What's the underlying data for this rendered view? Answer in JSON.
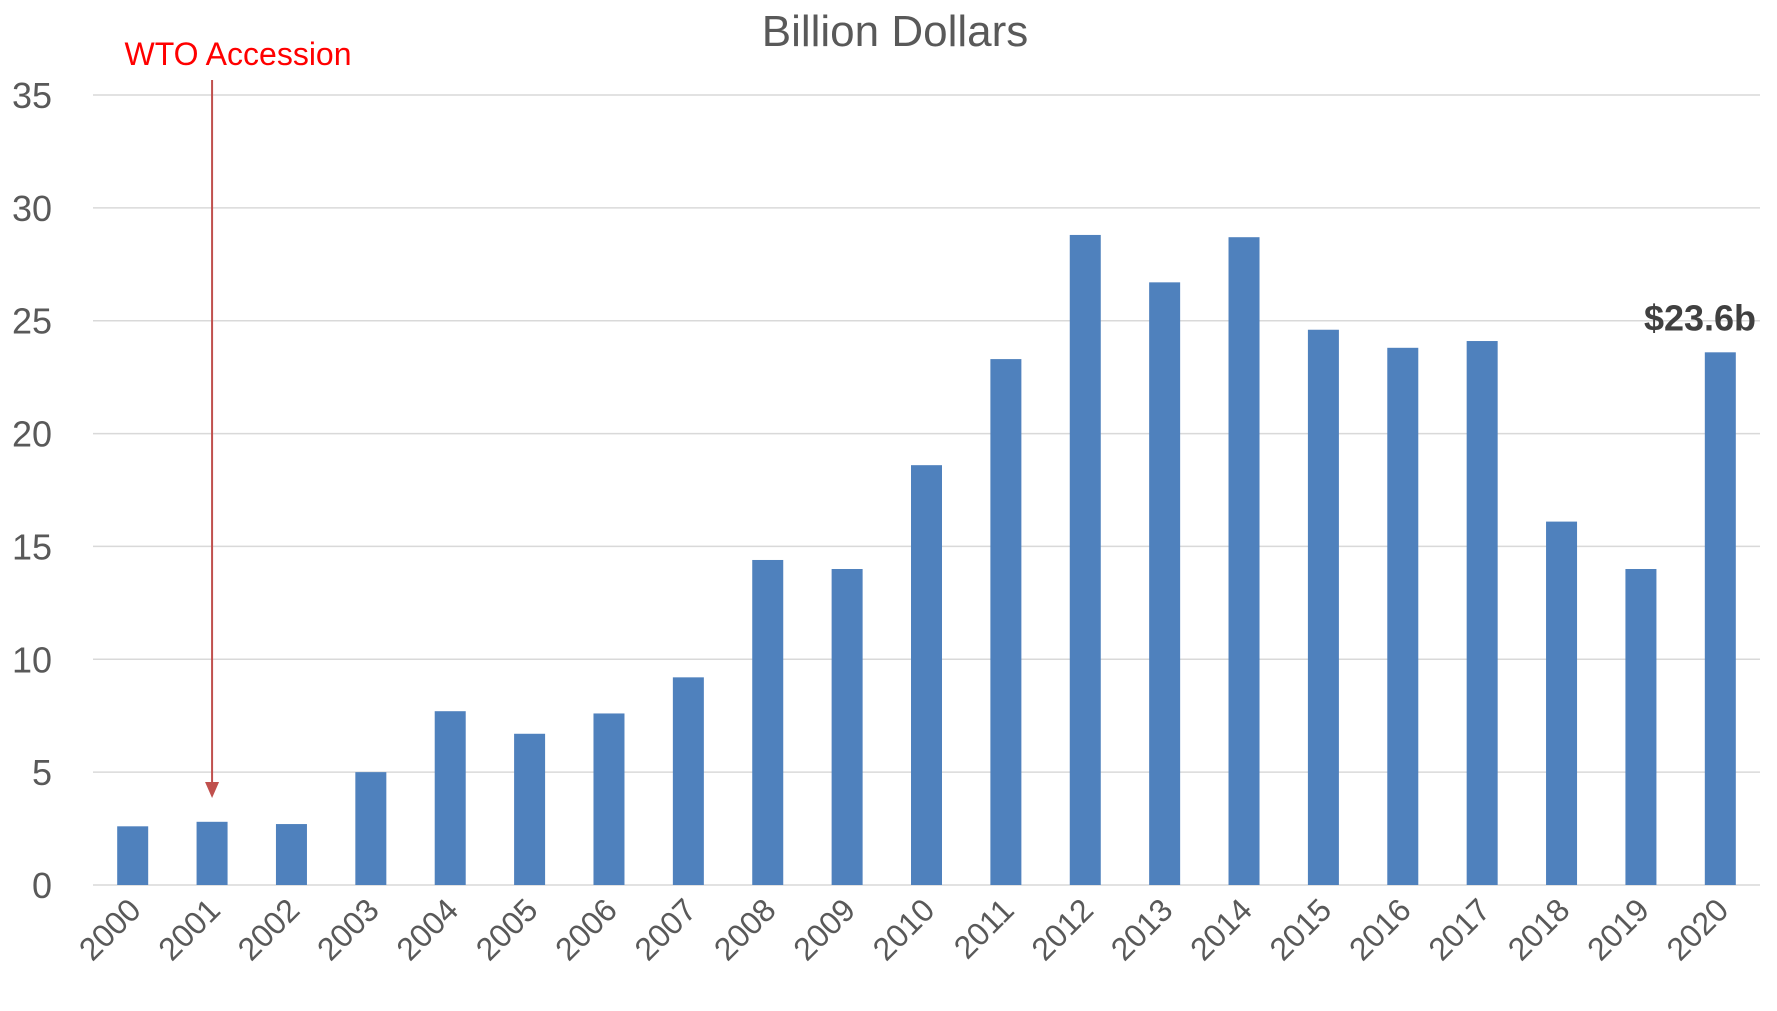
{
  "chart_data": {
    "type": "bar",
    "title": "Billion Dollars",
    "categories": [
      "2000",
      "2001",
      "2002",
      "2003",
      "2004",
      "2005",
      "2006",
      "2007",
      "2008",
      "2009",
      "2010",
      "2011",
      "2012",
      "2013",
      "2014",
      "2015",
      "2016",
      "2017",
      "2018",
      "2019",
      "2020"
    ],
    "values": [
      2.6,
      2.8,
      2.7,
      5.0,
      7.7,
      6.7,
      7.6,
      9.2,
      14.4,
      14.0,
      18.6,
      23.3,
      28.8,
      26.7,
      28.7,
      24.6,
      23.8,
      24.1,
      16.1,
      14.0,
      23.6
    ],
    "ylim": [
      0,
      35
    ],
    "yticks": [
      0,
      5,
      10,
      15,
      20,
      25,
      30,
      35
    ],
    "grid": true,
    "annotation": {
      "text": "WTO Accession",
      "category": "2001",
      "color": "#ff0000",
      "arrow_color": "#c0504d"
    },
    "data_label": {
      "category": "2020",
      "text": "$23.6b"
    },
    "bar_color": "#4f81bd",
    "grid_color": "#d9d9d9",
    "text_color": "#595959"
  }
}
